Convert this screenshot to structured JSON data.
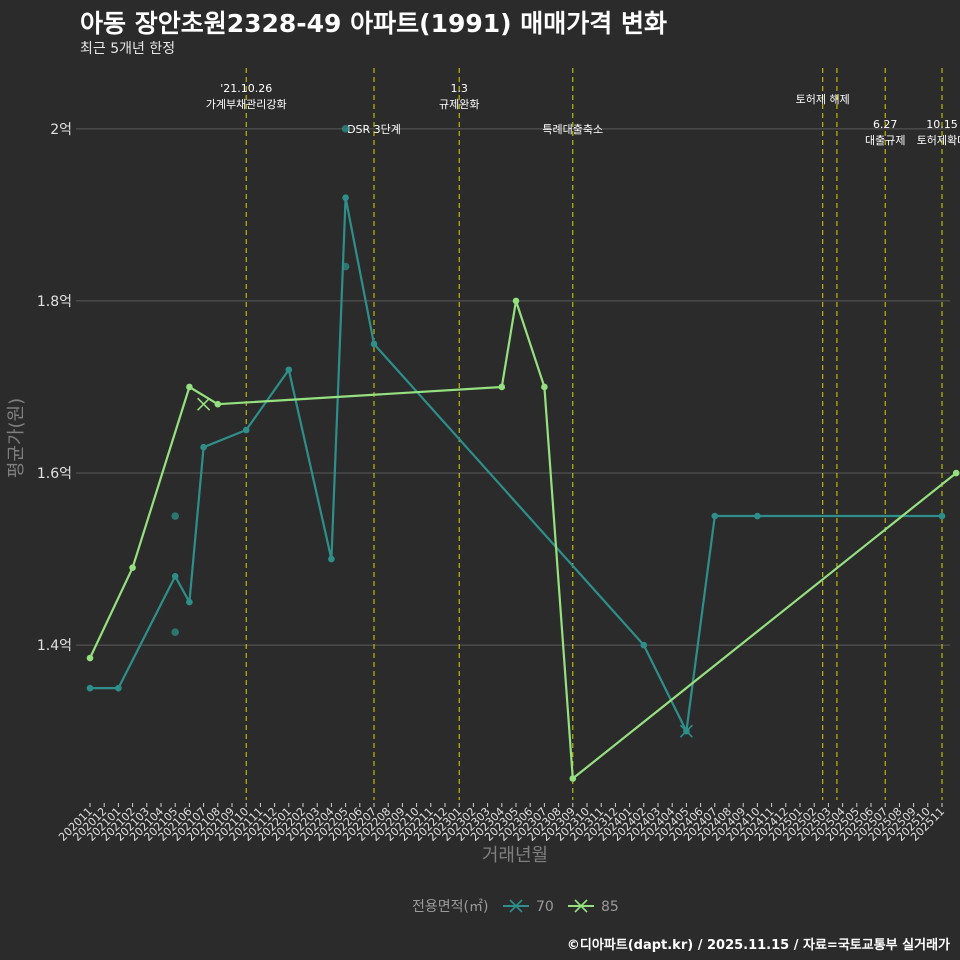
{
  "header": {
    "title": "아동 장안초원2328-49 아파트(1991) 매매가격 변화",
    "subtitle": "최근 5개년 한정"
  },
  "footer": "©디아파트(dapt.kr) / 2025.11.15 / 자료=국토교통부 실거래가",
  "colors": {
    "s70": "#2e8f8a",
    "s85": "#95e07f",
    "vline": "#d4d400",
    "grid": "#5a5a5a",
    "bg": "#2b2b2b"
  },
  "chart_data": {
    "type": "line",
    "title": "아동 장안초원2328-49 아파트(1991) 매매가격 변화",
    "xlabel": "거래년월",
    "ylabel": "평균가(원)",
    "ylim": [
      1.22,
      2.08
    ],
    "yticks": [
      1.4,
      1.6,
      1.8,
      2.0
    ],
    "ytick_labels": [
      "1.4억",
      "1.6억",
      "1.8억",
      "2억"
    ],
    "x_labels": [
      "202011",
      "202012",
      "202101",
      "202102",
      "202103",
      "202104",
      "202105",
      "202106",
      "202107",
      "202108",
      "202109",
      "202110",
      "202111",
      "202112",
      "202201",
      "202202",
      "202203",
      "202204",
      "202205",
      "202206",
      "202207",
      "202208",
      "202209",
      "202210",
      "202211",
      "202212",
      "202301",
      "202302",
      "202303",
      "202304",
      "202305",
      "202306",
      "202307",
      "202308",
      "202309",
      "202310",
      "202311",
      "202312",
      "202401",
      "202402",
      "202403",
      "202404",
      "202405",
      "202406",
      "202407",
      "202408",
      "202409",
      "202410",
      "202411",
      "202412",
      "202501",
      "202502",
      "202503",
      "202504",
      "202505",
      "202506",
      "202507",
      "202508",
      "202509",
      "202510",
      "202511"
    ],
    "legend_title": "전용면적(㎡)",
    "series": [
      {
        "name": "70",
        "points": [
          [
            0,
            1.35
          ],
          [
            2,
            1.35
          ],
          [
            6,
            1.48
          ],
          [
            7,
            1.45
          ],
          [
            8,
            1.63
          ],
          [
            11,
            1.65
          ],
          [
            14,
            1.72
          ],
          [
            17,
            1.5
          ],
          [
            18,
            1.92
          ],
          [
            20,
            1.75
          ],
          [
            39,
            1.4
          ],
          [
            42,
            1.3
          ],
          [
            44,
            1.55
          ],
          [
            47,
            1.55
          ],
          [
            60,
            1.55
          ]
        ],
        "scatter": [
          [
            6,
            1.55
          ],
          [
            6,
            1.415
          ],
          [
            18,
            1.84
          ],
          [
            18,
            2.0
          ]
        ],
        "cross": [
          [
            42,
            1.3
          ]
        ]
      },
      {
        "name": "85",
        "points": [
          [
            0,
            1.385
          ],
          [
            3,
            1.49
          ],
          [
            7,
            1.7
          ],
          [
            9,
            1.68
          ],
          [
            29,
            1.7
          ],
          [
            30,
            1.8
          ],
          [
            32,
            1.7
          ],
          [
            34,
            1.245
          ],
          [
            61,
            1.6
          ]
        ],
        "scatter": [],
        "cross": [
          [
            8,
            1.68
          ]
        ]
      }
    ],
    "events": [
      {
        "x": 11,
        "lines": [
          "'21.10.26",
          "가계부채관리강화"
        ],
        "level": 0
      },
      {
        "x": 20,
        "lines": [
          "DSR 3단계"
        ],
        "level": 2
      },
      {
        "x": 26,
        "lines": [
          "1.3",
          "규제완화"
        ],
        "level": 0
      },
      {
        "x": 34,
        "lines": [
          "특례대출축소"
        ],
        "level": 2
      },
      {
        "x": 51.6,
        "lines": [
          "토허제 해제"
        ],
        "level": 1
      },
      {
        "x": 52.6,
        "lines": [],
        "level": 1
      },
      {
        "x": 56,
        "lines": [
          "6.27",
          "대출규제"
        ],
        "level": 3
      },
      {
        "x": 60,
        "lines": [
          "10.15",
          "토허제확대"
        ],
        "level": 3
      }
    ]
  }
}
